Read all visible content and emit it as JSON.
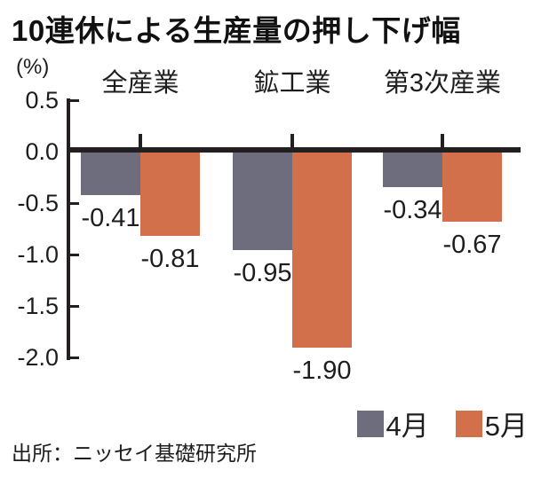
{
  "title": "10連休による生産量の押し下げ幅",
  "source": "出所：ニッセイ基礎研究所",
  "chart_data": {
    "type": "bar",
    "title": "10連休による生産量の押し下げ幅",
    "unit_label": "(%)",
    "categories": [
      "全産業",
      "鉱工業",
      "第3次産業"
    ],
    "series": [
      {
        "name": "4月",
        "color": "#6e6d7d",
        "values": [
          -0.41,
          -0.95,
          -0.34
        ]
      },
      {
        "name": "5月",
        "color": "#d1704b",
        "values": [
          -0.81,
          -1.9,
          -0.67
        ]
      }
    ],
    "value_labels": {
      "series_4月": [
        "-0.41",
        "-0.95",
        "-0.34"
      ],
      "series_5月": [
        "-0.81",
        "-1.90",
        "-0.67"
      ]
    },
    "ylim": [
      -2.0,
      0.5
    ],
    "yticks": [
      "0.5",
      "0.0",
      "-0.5",
      "-1.0",
      "-1.5",
      "-2.0"
    ],
    "grid": false,
    "legend_position": "bottom-right",
    "axis_color": "#231f20",
    "background_color": "#ffffff"
  }
}
